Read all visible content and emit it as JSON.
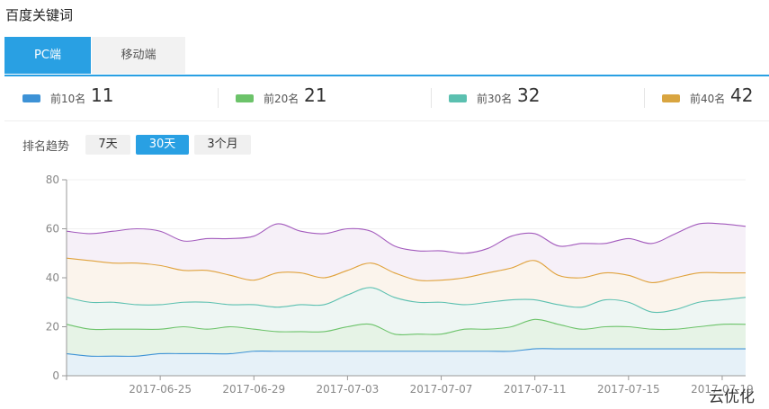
{
  "page_title": "百度关键词",
  "tabs": [
    {
      "label": "PC端",
      "active": true
    },
    {
      "label": "移动端",
      "active": false
    }
  ],
  "stats": [
    {
      "label": "前10名",
      "value": "11",
      "color": "#3d92d6"
    },
    {
      "label": "前20名",
      "value": "21",
      "color": "#6cc36a"
    },
    {
      "label": "前30名",
      "value": "32",
      "color": "#5bc0b0"
    },
    {
      "label": "前40名",
      "value": "42",
      "color": "#d9a540"
    }
  ],
  "trend": {
    "label": "排名趋势",
    "ranges": [
      {
        "label": "7天",
        "active": false
      },
      {
        "label": "30天",
        "active": true
      },
      {
        "label": "3个月",
        "active": false
      }
    ]
  },
  "watermark": "云优化",
  "chart_data": {
    "type": "area",
    "x_start": "2017-06-21",
    "x_end": "2017-07-20",
    "ylim": [
      0,
      80
    ],
    "yticks": [
      0,
      20,
      40,
      60,
      80
    ],
    "xticks": [
      "2017-06-25",
      "2017-06-29",
      "2017-07-03",
      "2017-07-07",
      "2017-07-11",
      "2017-07-15",
      "2017-07-19"
    ],
    "x": [
      "2017-06-21",
      "2017-06-22",
      "2017-06-23",
      "2017-06-24",
      "2017-06-25",
      "2017-06-26",
      "2017-06-27",
      "2017-06-28",
      "2017-06-29",
      "2017-06-30",
      "2017-07-01",
      "2017-07-02",
      "2017-07-03",
      "2017-07-04",
      "2017-07-05",
      "2017-07-06",
      "2017-07-07",
      "2017-07-08",
      "2017-07-09",
      "2017-07-10",
      "2017-07-11",
      "2017-07-12",
      "2017-07-13",
      "2017-07-14",
      "2017-07-15",
      "2017-07-16",
      "2017-07-17",
      "2017-07-18",
      "2017-07-19",
      "2017-07-20"
    ],
    "series": [
      {
        "color": "#3d92d6",
        "fill": "#e6f1f8",
        "values": [
          9,
          8,
          8,
          8,
          9,
          9,
          9,
          9,
          10,
          10,
          10,
          10,
          10,
          10,
          10,
          10,
          10,
          10,
          10,
          10,
          11,
          11,
          11,
          11,
          11,
          11,
          11,
          11,
          11,
          11
        ]
      },
      {
        "color": "#6cc36a",
        "fill": "#e6f3e6",
        "values": [
          21,
          19,
          19,
          19,
          19,
          20,
          19,
          20,
          19,
          18,
          18,
          18,
          20,
          21,
          17,
          17,
          17,
          19,
          19,
          20,
          23,
          21,
          19,
          20,
          20,
          19,
          19,
          20,
          21,
          21
        ]
      },
      {
        "color": "#5bc0b0",
        "fill": "#eef6f3",
        "values": [
          32,
          30,
          30,
          29,
          29,
          30,
          30,
          29,
          29,
          28,
          29,
          29,
          33,
          36,
          32,
          30,
          30,
          29,
          30,
          31,
          31,
          29,
          28,
          31,
          30,
          26,
          27,
          30,
          31,
          32
        ]
      },
      {
        "color": "#e0a23c",
        "fill": "#fbf4ec",
        "values": [
          48,
          47,
          46,
          46,
          45,
          43,
          43,
          41,
          39,
          42,
          42,
          40,
          43,
          46,
          42,
          39,
          39,
          40,
          42,
          44,
          47,
          41,
          40,
          42,
          41,
          38,
          40,
          42,
          42,
          42
        ]
      },
      {
        "color": "#a35bbd",
        "fill": "#f6f0f8",
        "values": [
          59,
          58,
          59,
          60,
          59,
          55,
          56,
          56,
          57,
          62,
          59,
          58,
          60,
          59,
          53,
          51,
          51,
          50,
          52,
          57,
          58,
          53,
          54,
          54,
          56,
          54,
          58,
          62,
          62,
          61
        ]
      }
    ]
  }
}
